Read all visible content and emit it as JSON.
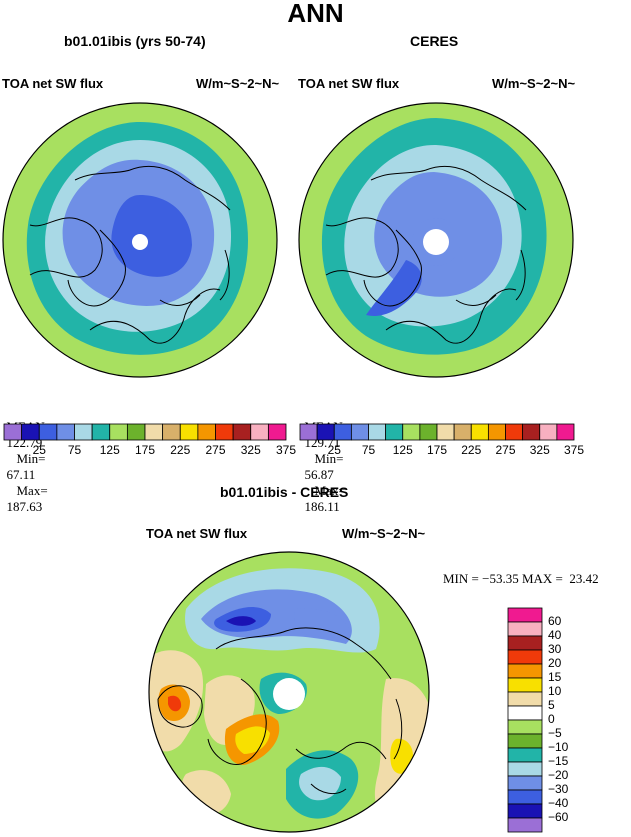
{
  "title": "ANN",
  "panels": [
    {
      "title": "b01.01ibis (yrs 50-74)",
      "left_label": "TOA net SW flux",
      "right_label": "W/m~S~2~N~",
      "stats": {
        "mean_label": "MEAN=",
        "mean": "122.79",
        "min_label": "Min=",
        "min": "67.11",
        "max_label": "Max=",
        "max": "187.63"
      }
    },
    {
      "title": "CERES",
      "left_label": "TOA net SW flux",
      "right_label": "W/m~S~2~N~",
      "stats": {
        "mean_label": "MEAN=",
        "mean": "129.71",
        "min_label": "Min=",
        "min": "56.87",
        "max_label": "Max=",
        "max": "186.11"
      }
    },
    {
      "title": "b01.01ibis - CERES",
      "left_label": "TOA net SW flux",
      "right_label": "W/m~S~2~N~",
      "stats_text": "MIN = −53.35 MAX =  23.42"
    }
  ],
  "colorbar_abs": {
    "colors": [
      "#9b6fd6",
      "#1a12b4",
      "#3d5fe0",
      "#6f8fe6",
      "#a9d9e6",
      "#22b4a8",
      "#a8e060",
      "#6cb22c",
      "#f1dcaa",
      "#d8b06a",
      "#f8e000",
      "#f59600",
      "#f03a0a",
      "#a82020",
      "#f8b0c0",
      "#f01a90"
    ],
    "tick_labels": [
      "25",
      "75",
      "125",
      "175",
      "225",
      "275",
      "325",
      "375"
    ]
  },
  "colorbar_diff": {
    "colors": [
      "#f01a90",
      "#f8b0c0",
      "#a82020",
      "#f03a0a",
      "#f59600",
      "#f8e000",
      "#f1dcaa",
      "#ffffff",
      "#a8e060",
      "#6cb22c",
      "#22b4a8",
      "#a9d9e6",
      "#6f8fe6",
      "#3d5fe0",
      "#1a12b4",
      "#9b6fd6"
    ],
    "tick_labels": [
      "60",
      "40",
      "30",
      "20",
      "15",
      "10",
      "5",
      "0",
      "−5",
      "−10",
      "−15",
      "−20",
      "−30",
      "−40",
      "−60"
    ]
  },
  "map_colors": {
    "outer": "#a8e060",
    "band_teal": "#22b4a8",
    "band_light": "#a9d9e6",
    "band_mid": "#6f8fe6",
    "band_dark": "#3d5fe0",
    "band_deep": "#1a12b4",
    "tan": "#f1dcaa",
    "orange": "#f59600",
    "red": "#f03a0a",
    "yellow": "#f8e000",
    "green_dark": "#6cb22c"
  }
}
